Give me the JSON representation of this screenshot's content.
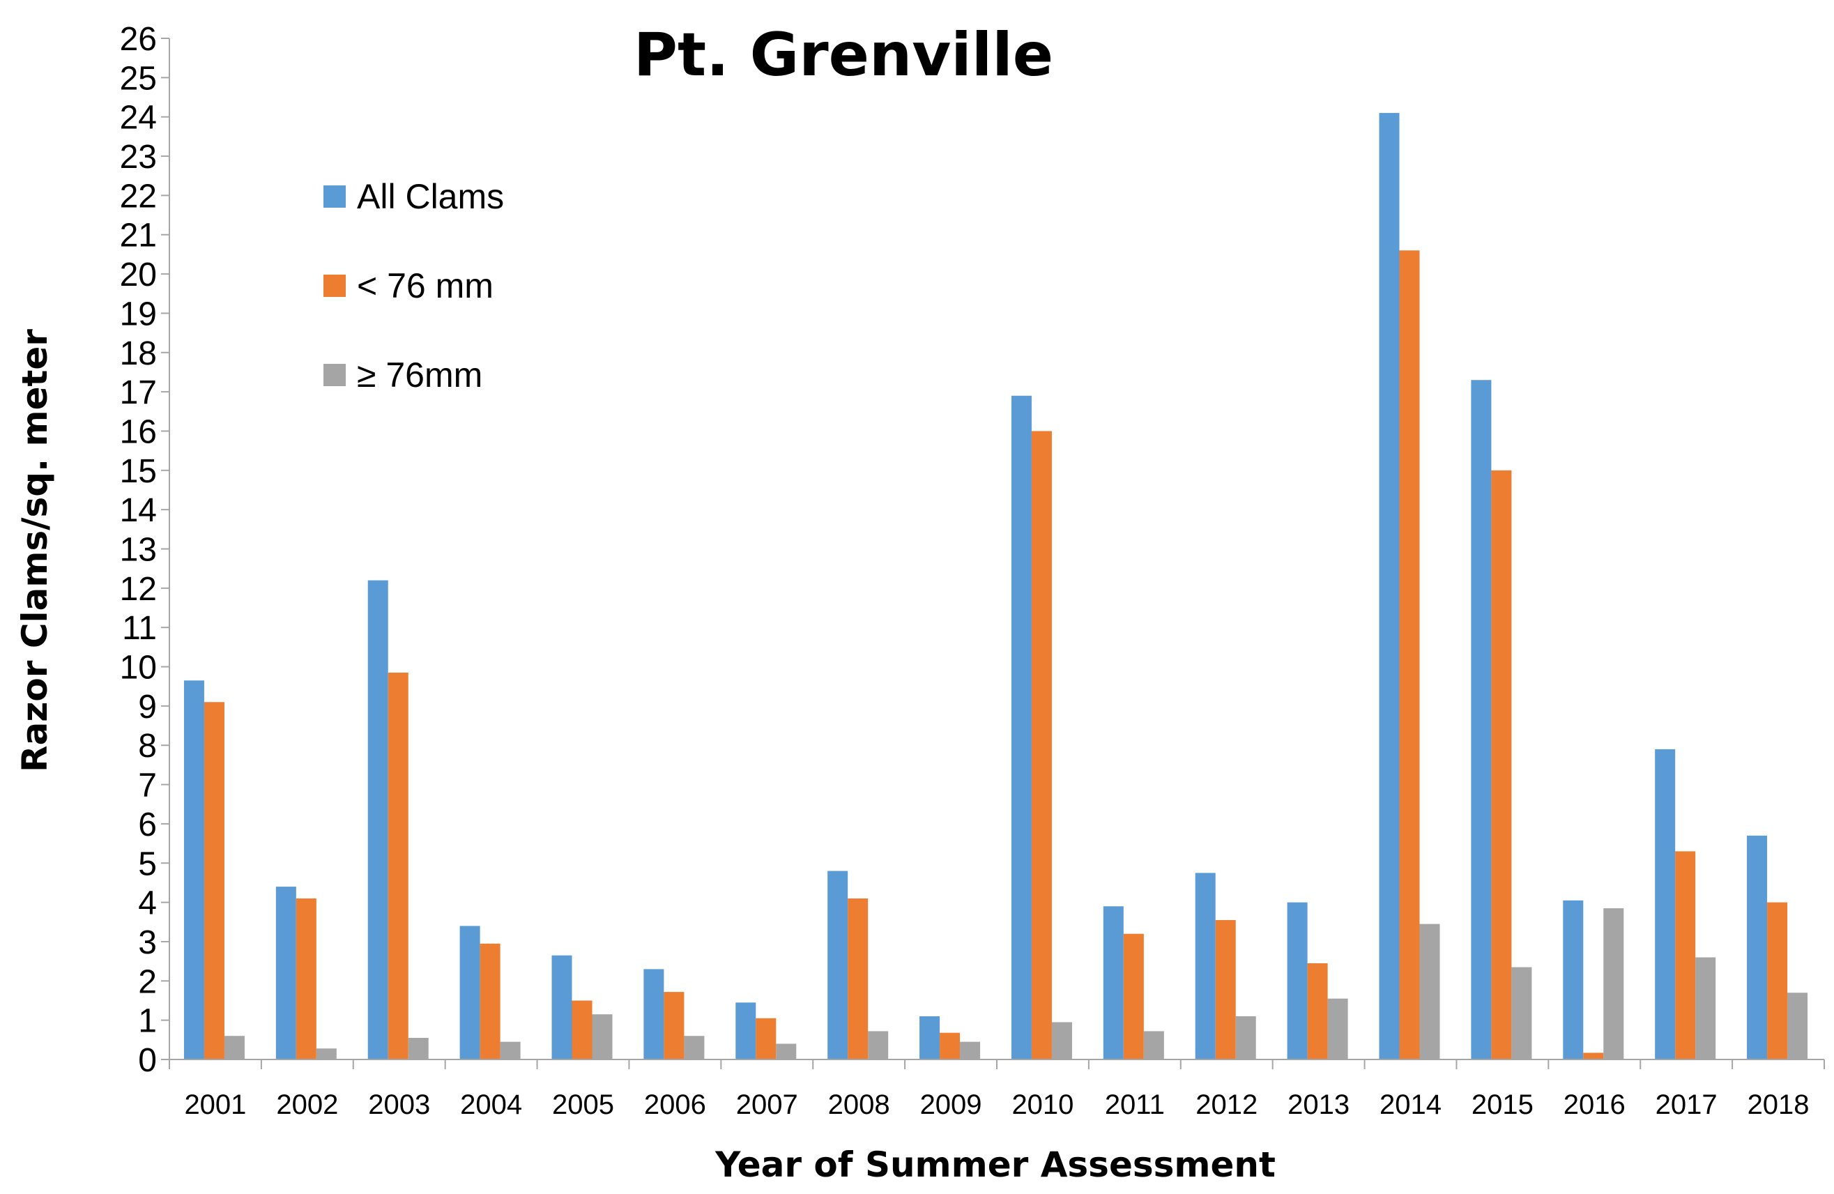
{
  "chart_data": {
    "type": "bar",
    "title": "Pt. Grenville",
    "xlabel": "Year of Summer Assessment",
    "ylabel": "Razor Clams/sq. meter",
    "ylim": [
      0,
      26
    ],
    "yticks": [
      0,
      1,
      2,
      3,
      4,
      5,
      6,
      7,
      8,
      9,
      10,
      11,
      12,
      13,
      14,
      15,
      16,
      17,
      18,
      19,
      20,
      21,
      22,
      23,
      24,
      25,
      26
    ],
    "grid": false,
    "legend_position": "upper-left",
    "categories": [
      "2001",
      "2002",
      "2003",
      "2004",
      "2005",
      "2006",
      "2007",
      "2008",
      "2009",
      "2010",
      "2011",
      "2012",
      "2013",
      "2014",
      "2015",
      "2016",
      "2017",
      "2018"
    ],
    "series": [
      {
        "name": "All Clams",
        "color": "#5b9bd5",
        "values": [
          9.65,
          4.4,
          12.2,
          3.4,
          2.65,
          2.3,
          1.45,
          4.8,
          1.1,
          16.9,
          3.9,
          4.75,
          4.0,
          24.1,
          17.3,
          4.05,
          7.9,
          5.7
        ]
      },
      {
        "name": "< 76 mm",
        "color": "#ed7d31",
        "values": [
          9.1,
          4.1,
          9.85,
          2.95,
          1.5,
          1.72,
          1.05,
          4.1,
          0.68,
          16.0,
          3.2,
          3.55,
          2.45,
          20.6,
          15.0,
          0.17,
          5.3,
          4.0
        ]
      },
      {
        "name": "≥ 76mm",
        "color": "#a5a5a5",
        "values": [
          0.6,
          0.28,
          0.55,
          0.45,
          1.15,
          0.6,
          0.4,
          0.72,
          0.45,
          0.95,
          0.72,
          1.1,
          1.55,
          3.45,
          2.35,
          3.85,
          2.6,
          1.7
        ]
      }
    ]
  }
}
